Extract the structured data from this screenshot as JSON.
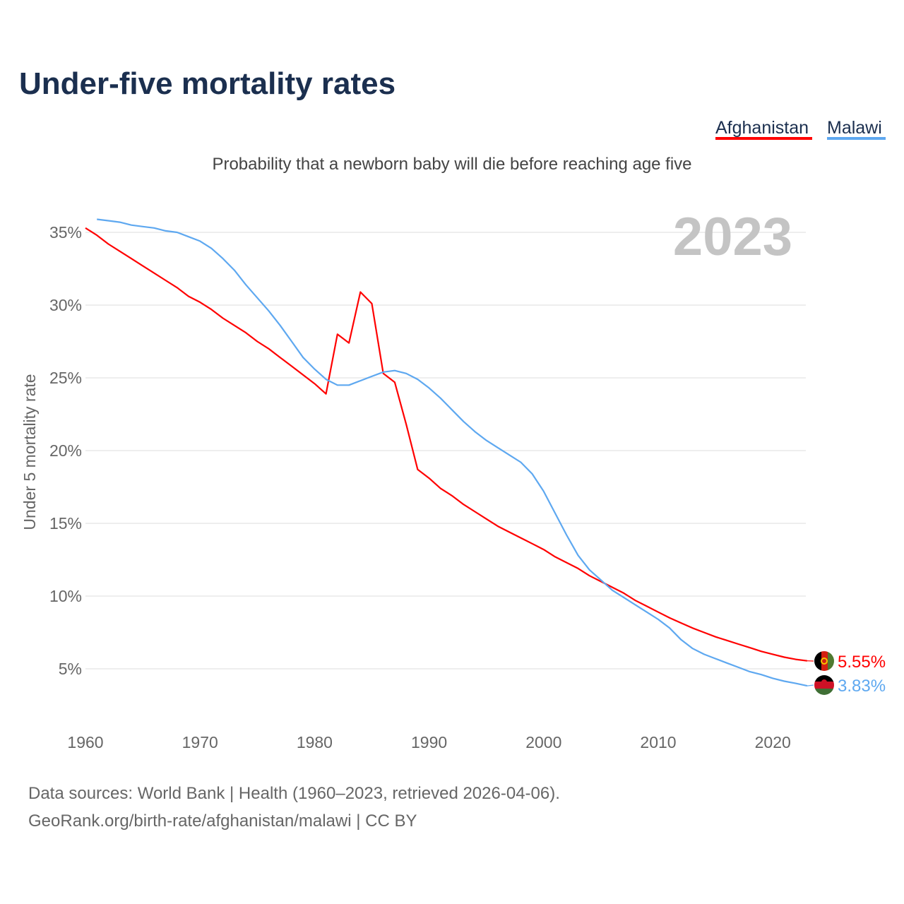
{
  "chart_data": {
    "type": "line",
    "title": "Under-five mortality rates",
    "subtitle": "Probability that a newborn baby will die before reaching age five",
    "ylabel": "Under 5 mortality rate",
    "xlabel": "",
    "year_watermark": "2023",
    "xlim": [
      1960,
      2023
    ],
    "ylim": [
      0,
      37
    ],
    "x_ticks": [
      1960,
      1970,
      1980,
      1990,
      2000,
      2010,
      2020
    ],
    "y_ticks": [
      5,
      10,
      15,
      20,
      25,
      30,
      35
    ],
    "y_tick_labels": [
      "5%",
      "10%",
      "15%",
      "20%",
      "25%",
      "30%",
      "35%"
    ],
    "grid": true,
    "legend_position": "top-right",
    "series": [
      {
        "name": "Afghanistan",
        "color": "#ff0000",
        "end_label": "5.55%",
        "start_year": 1960,
        "values": [
          35.3,
          34.8,
          34.2,
          33.7,
          33.2,
          32.7,
          32.2,
          31.7,
          31.2,
          30.6,
          30.2,
          29.7,
          29.1,
          28.6,
          28.1,
          27.5,
          27.0,
          26.4,
          25.8,
          25.2,
          24.6,
          23.9,
          28.0,
          27.4,
          30.9,
          30.1,
          25.3,
          24.7,
          21.8,
          18.7,
          18.1,
          17.4,
          16.9,
          16.3,
          15.8,
          15.3,
          14.8,
          14.4,
          14.0,
          13.6,
          13.2,
          12.7,
          12.3,
          11.9,
          11.4,
          11.0,
          10.6,
          10.2,
          9.7,
          9.3,
          8.9,
          8.5,
          8.15,
          7.8,
          7.5,
          7.2,
          6.95,
          6.7,
          6.45,
          6.2,
          6.0,
          5.8,
          5.65,
          5.55
        ]
      },
      {
        "name": "Malawi",
        "color": "#5ea8f0",
        "end_label": "3.83%",
        "start_year": 1961,
        "values": [
          35.9,
          35.8,
          35.7,
          35.5,
          35.4,
          35.3,
          35.1,
          35.0,
          34.7,
          34.4,
          33.9,
          33.2,
          32.4,
          31.4,
          30.5,
          29.6,
          28.6,
          27.5,
          26.4,
          25.6,
          24.9,
          24.5,
          24.5,
          24.8,
          25.1,
          25.4,
          25.5,
          25.3,
          24.9,
          24.3,
          23.6,
          22.8,
          22.0,
          21.3,
          20.7,
          20.2,
          19.7,
          19.2,
          18.4,
          17.2,
          15.7,
          14.2,
          12.8,
          11.8,
          11.1,
          10.4,
          9.9,
          9.4,
          8.9,
          8.4,
          7.8,
          7.0,
          6.4,
          6.0,
          5.7,
          5.4,
          5.1,
          4.8,
          4.6,
          4.35,
          4.15,
          4.0,
          3.83
        ]
      }
    ]
  },
  "footer": {
    "line1": "Data sources: World Bank | Health (1960–2023, retrieved 2026-04-06).",
    "line2": "GeoRank.org/birth-rate/afghanistan/malawi | CC BY"
  }
}
